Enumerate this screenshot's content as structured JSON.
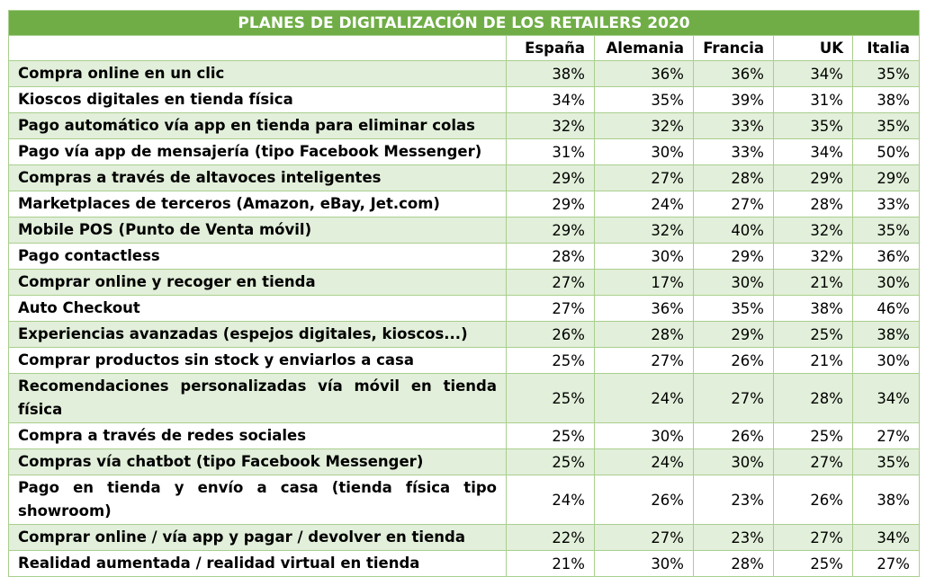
{
  "title": "PLANES DE DIGITALIZACIÓN DE LOS RETAILERS 2020",
  "columns": [
    "España",
    "Alemania",
    "Francia",
    "UK",
    "Italia"
  ],
  "rows": [
    {
      "label": "Compra online en un clic",
      "values": [
        "38%",
        "36%",
        "36%",
        "34%",
        "35%"
      ]
    },
    {
      "label": "Kioscos digitales en tienda física",
      "values": [
        "34%",
        "35%",
        "39%",
        "31%",
        "38%"
      ]
    },
    {
      "label": "Pago automático vía app en tienda para eliminar colas",
      "values": [
        "32%",
        "32%",
        "33%",
        "35%",
        "35%"
      ]
    },
    {
      "label": "Pago vía app de mensajería (tipo Facebook Messenger)",
      "values": [
        "31%",
        "30%",
        "33%",
        "34%",
        "50%"
      ]
    },
    {
      "label": "Compras a través de altavoces inteligentes",
      "values": [
        "29%",
        "27%",
        "28%",
        "29%",
        "29%"
      ]
    },
    {
      "label": "Marketplaces de terceros (Amazon, eBay, Jet.com)",
      "values": [
        "29%",
        "24%",
        "27%",
        "28%",
        "33%"
      ]
    },
    {
      "label": "Mobile POS (Punto de Venta móvil)",
      "values": [
        "29%",
        "32%",
        "40%",
        "32%",
        "35%"
      ]
    },
    {
      "label": "Pago contactless",
      "values": [
        "28%",
        "30%",
        "29%",
        "32%",
        "36%"
      ]
    },
    {
      "label": "Comprar online y recoger en tienda",
      "values": [
        "27%",
        "17%",
        "30%",
        "21%",
        "30%"
      ]
    },
    {
      "label": "Auto Checkout",
      "values": [
        "27%",
        "36%",
        "35%",
        "38%",
        "46%"
      ]
    },
    {
      "label": "Experiencias avanzadas (espejos digitales, kioscos...)",
      "values": [
        "26%",
        "28%",
        "29%",
        "25%",
        "38%"
      ]
    },
    {
      "label": "Comprar productos sin stock y enviarlos a casa",
      "values": [
        "25%",
        "27%",
        "26%",
        "21%",
        "30%"
      ]
    },
    {
      "label": "Recomendaciones personalizadas vía móvil en tienda física",
      "values": [
        "25%",
        "24%",
        "27%",
        "28%",
        "34%"
      ]
    },
    {
      "label": "Compra a través de redes sociales",
      "values": [
        "25%",
        "30%",
        "26%",
        "25%",
        "27%"
      ]
    },
    {
      "label": "Compras vía chatbot (tipo Facebook Messenger)",
      "values": [
        "25%",
        "24%",
        "30%",
        "27%",
        "35%"
      ]
    },
    {
      "label": "Pago en tienda y envío a casa (tienda física tipo showroom)",
      "values": [
        "24%",
        "26%",
        "23%",
        "26%",
        "38%"
      ]
    },
    {
      "label": "Comprar online / vía app y pagar / devolver en tienda",
      "values": [
        "22%",
        "27%",
        "23%",
        "27%",
        "34%"
      ]
    },
    {
      "label": "Realidad aumentada / realidad virtual en tienda",
      "values": [
        "21%",
        "30%",
        "28%",
        "25%",
        "27%"
      ]
    }
  ]
}
